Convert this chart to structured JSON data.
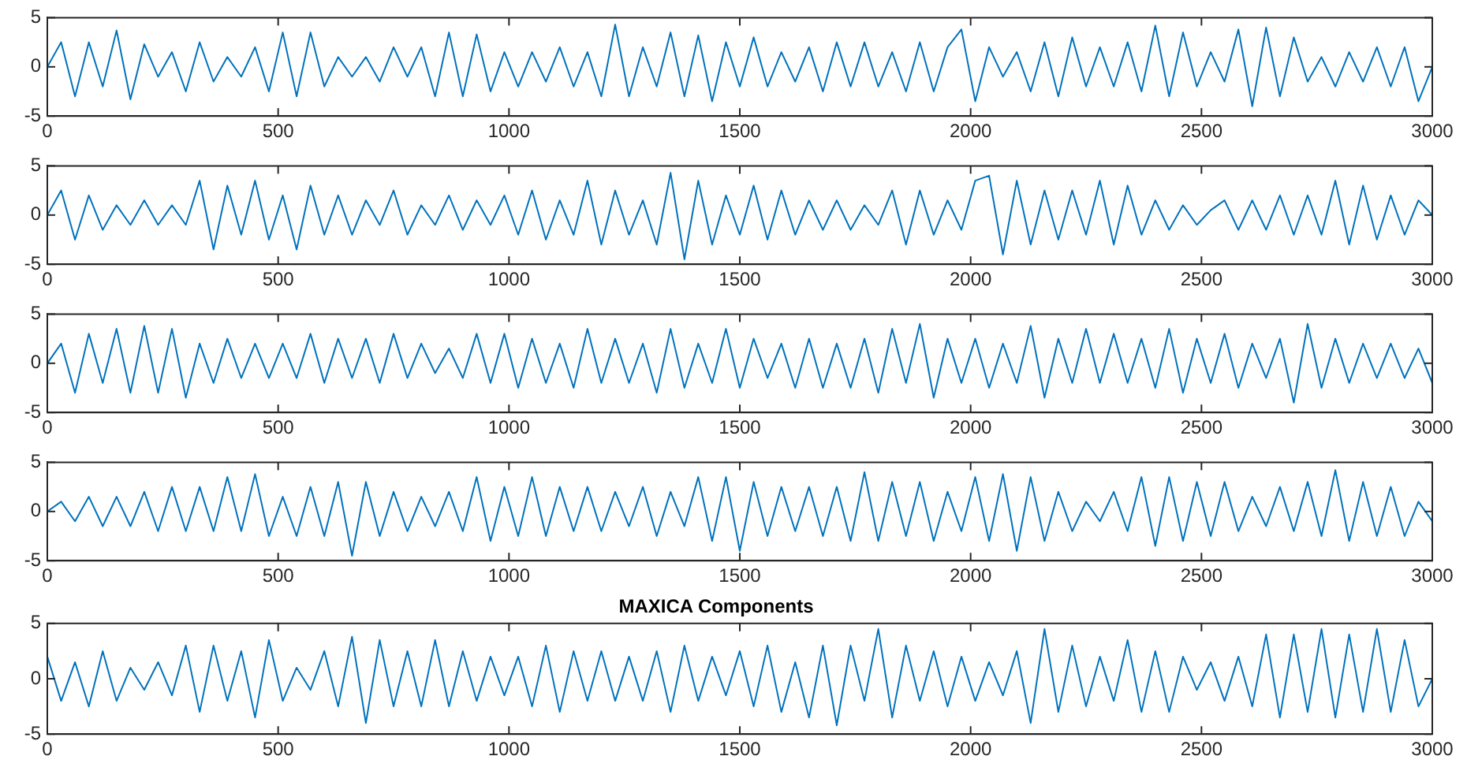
{
  "chart_data": [
    {
      "type": "line",
      "color": "#0072bd",
      "xlim": [
        0,
        3000
      ],
      "ylim": [
        -5,
        5
      ],
      "xticks": [
        0,
        500,
        1000,
        1500,
        2000,
        2500,
        3000
      ],
      "yticks": [
        -5,
        0,
        5
      ],
      "x": [
        0,
        30,
        60,
        90,
        120,
        150,
        180,
        210,
        240,
        270,
        300,
        330,
        360,
        390,
        420,
        450,
        480,
        510,
        540,
        570,
        600,
        630,
        660,
        690,
        720,
        750,
        780,
        810,
        840,
        870,
        900,
        930,
        960,
        990,
        1020,
        1050,
        1080,
        1110,
        1140,
        1170,
        1200,
        1230,
        1260,
        1290,
        1320,
        1350,
        1380,
        1410,
        1440,
        1470,
        1500,
        1530,
        1560,
        1590,
        1620,
        1650,
        1680,
        1710,
        1740,
        1770,
        1800,
        1830,
        1860,
        1890,
        1920,
        1950,
        1980,
        2010,
        2040,
        2070,
        2100,
        2130,
        2160,
        2190,
        2220,
        2250,
        2280,
        2310,
        2340,
        2370,
        2400,
        2430,
        2460,
        2490,
        2520,
        2550,
        2580,
        2610,
        2640,
        2670,
        2700,
        2730,
        2760,
        2790,
        2820,
        2850,
        2880,
        2910,
        2940,
        2970,
        3000
      ],
      "values": [
        0,
        2.5,
        -3,
        2.5,
        -2,
        3.7,
        -3.3,
        2.3,
        -1,
        1.5,
        -2.5,
        2.5,
        -1.5,
        1,
        -1,
        2,
        -2.5,
        3.5,
        -3,
        3.5,
        -2,
        1,
        -1,
        1,
        -1.5,
        2,
        -1,
        2,
        -3,
        3.5,
        -3,
        3.3,
        -2.5,
        1.5,
        -2,
        1.5,
        -1.5,
        2,
        -2,
        1.5,
        -3,
        4.3,
        -3,
        2,
        -2,
        3.5,
        -3,
        3.2,
        -3.5,
        2.5,
        -2,
        3,
        -2,
        1.5,
        -1.5,
        2,
        -2.5,
        2.5,
        -2,
        2.5,
        -2,
        1.5,
        -2.5,
        2.5,
        -2.5,
        2,
        3.8,
        -3.5,
        2,
        -1,
        1.5,
        -2.5,
        2.5,
        -3,
        3,
        -2,
        2,
        -2,
        2.5,
        -2.5,
        4.2,
        -3,
        3.5,
        -2,
        1.5,
        -1.5,
        3.8,
        -4,
        4,
        -3,
        3,
        -1.5,
        1,
        -2,
        1.5,
        -1.5,
        2,
        -2,
        2,
        -3.5,
        0
      ]
    },
    {
      "type": "line",
      "color": "#0072bd",
      "xlim": [
        0,
        3000
      ],
      "ylim": [
        -5,
        5
      ],
      "xticks": [
        0,
        500,
        1000,
        1500,
        2000,
        2500,
        3000
      ],
      "yticks": [
        -5,
        0,
        5
      ],
      "x": [
        0,
        30,
        60,
        90,
        120,
        150,
        180,
        210,
        240,
        270,
        300,
        330,
        360,
        390,
        420,
        450,
        480,
        510,
        540,
        570,
        600,
        630,
        660,
        690,
        720,
        750,
        780,
        810,
        840,
        870,
        900,
        930,
        960,
        990,
        1020,
        1050,
        1080,
        1110,
        1140,
        1170,
        1200,
        1230,
        1260,
        1290,
        1320,
        1350,
        1380,
        1410,
        1440,
        1470,
        1500,
        1530,
        1560,
        1590,
        1620,
        1650,
        1680,
        1710,
        1740,
        1770,
        1800,
        1830,
        1860,
        1890,
        1920,
        1950,
        1980,
        2010,
        2040,
        2070,
        2100,
        2130,
        2160,
        2190,
        2220,
        2250,
        2280,
        2310,
        2340,
        2370,
        2400,
        2430,
        2460,
        2490,
        2520,
        2550,
        2580,
        2610,
        2640,
        2670,
        2700,
        2730,
        2760,
        2790,
        2820,
        2850,
        2880,
        2910,
        2940,
        2970,
        3000
      ],
      "values": [
        0,
        2.5,
        -2.5,
        2,
        -1.5,
        1,
        -1,
        1.5,
        -1,
        1,
        -1,
        3.5,
        -3.5,
        3,
        -2,
        3.5,
        -2.5,
        2,
        -3.5,
        3,
        -2,
        2,
        -2,
        1.5,
        -1,
        2.5,
        -2,
        1,
        -1,
        2,
        -1.5,
        1.5,
        -1,
        2,
        -2,
        2.5,
        -2.5,
        1.5,
        -2,
        3.5,
        -3,
        2.5,
        -2,
        1.5,
        -3,
        4.3,
        -4.5,
        3.5,
        -3,
        2,
        -2,
        3,
        -2.5,
        2.5,
        -2,
        1.5,
        -1.5,
        1.5,
        -1.5,
        1,
        -1,
        2.5,
        -3,
        2.5,
        -2,
        1.5,
        -1.5,
        3.5,
        4,
        -4,
        3.5,
        -3,
        2.5,
        -2.5,
        2.5,
        -2,
        3.5,
        -3,
        3,
        -2,
        1.5,
        -1.5,
        1,
        -1,
        0.5,
        1.5,
        -1.5,
        1.5,
        -1.5,
        2,
        -2,
        2,
        -2,
        3.5,
        -3,
        3,
        -2.5,
        2,
        -2,
        1.5,
        0
      ]
    },
    {
      "type": "line",
      "color": "#0072bd",
      "xlim": [
        0,
        3000
      ],
      "ylim": [
        -5,
        5
      ],
      "xticks": [
        0,
        500,
        1000,
        1500,
        2000,
        2500,
        3000
      ],
      "yticks": [
        -5,
        0,
        5
      ],
      "x": [
        0,
        30,
        60,
        90,
        120,
        150,
        180,
        210,
        240,
        270,
        300,
        330,
        360,
        390,
        420,
        450,
        480,
        510,
        540,
        570,
        600,
        630,
        660,
        690,
        720,
        750,
        780,
        810,
        840,
        870,
        900,
        930,
        960,
        990,
        1020,
        1050,
        1080,
        1110,
        1140,
        1170,
        1200,
        1230,
        1260,
        1290,
        1320,
        1350,
        1380,
        1410,
        1440,
        1470,
        1500,
        1530,
        1560,
        1590,
        1620,
        1650,
        1680,
        1710,
        1740,
        1770,
        1800,
        1830,
        1860,
        1890,
        1920,
        1950,
        1980,
        2010,
        2040,
        2070,
        2100,
        2130,
        2160,
        2190,
        2220,
        2250,
        2280,
        2310,
        2340,
        2370,
        2400,
        2430,
        2460,
        2490,
        2520,
        2550,
        2580,
        2610,
        2640,
        2670,
        2700,
        2730,
        2760,
        2790,
        2820,
        2850,
        2880,
        2910,
        2940,
        2970,
        3000
      ],
      "values": [
        0,
        2,
        -3,
        3,
        -2,
        3.5,
        -3,
        3.8,
        -3,
        3.5,
        -3.5,
        2,
        -2,
        2.5,
        -1.5,
        2,
        -1.5,
        2,
        -1.5,
        3,
        -2,
        2.5,
        -1.5,
        2.5,
        -2,
        3,
        -1.5,
        2,
        -1,
        1.5,
        -1.5,
        3,
        -2,
        3,
        -2.5,
        2.5,
        -2,
        2,
        -2.5,
        3.5,
        -2,
        2.5,
        -2,
        2,
        -3,
        3.5,
        -2.5,
        2,
        -2,
        3.5,
        -2.5,
        2.5,
        -1.5,
        2,
        -2.5,
        2.5,
        -2.5,
        2,
        -2.5,
        2.5,
        -3,
        3.5,
        -2,
        4,
        -3.5,
        2.5,
        -2,
        2.5,
        -2.5,
        2,
        -2,
        3.8,
        -3.5,
        2.5,
        -2,
        3.5,
        -2,
        3,
        -2,
        2.5,
        -2.5,
        3.5,
        -3,
        2.5,
        -2,
        3,
        -2.5,
        2,
        -1.5,
        2.5,
        -4,
        4,
        -2.5,
        2.5,
        -2,
        2,
        -1.5,
        2,
        -1.5,
        1.5,
        -2
      ]
    },
    {
      "type": "line",
      "color": "#0072bd",
      "xlim": [
        0,
        3000
      ],
      "ylim": [
        -5,
        5
      ],
      "xticks": [
        0,
        500,
        1000,
        1500,
        2000,
        2500,
        3000
      ],
      "yticks": [
        -5,
        0,
        5
      ],
      "x": [
        0,
        30,
        60,
        90,
        120,
        150,
        180,
        210,
        240,
        270,
        300,
        330,
        360,
        390,
        420,
        450,
        480,
        510,
        540,
        570,
        600,
        630,
        660,
        690,
        720,
        750,
        780,
        810,
        840,
        870,
        900,
        930,
        960,
        990,
        1020,
        1050,
        1080,
        1110,
        1140,
        1170,
        1200,
        1230,
        1260,
        1290,
        1320,
        1350,
        1380,
        1410,
        1440,
        1470,
        1500,
        1530,
        1560,
        1590,
        1620,
        1650,
        1680,
        1710,
        1740,
        1770,
        1800,
        1830,
        1860,
        1890,
        1920,
        1950,
        1980,
        2010,
        2040,
        2070,
        2100,
        2130,
        2160,
        2190,
        2220,
        2250,
        2280,
        2310,
        2340,
        2370,
        2400,
        2430,
        2460,
        2490,
        2520,
        2550,
        2580,
        2610,
        2640,
        2670,
        2700,
        2730,
        2760,
        2790,
        2820,
        2850,
        2880,
        2910,
        2940,
        2970,
        3000
      ],
      "values": [
        0,
        1,
        -1,
        1.5,
        -1.5,
        1.5,
        -1.5,
        2,
        -2,
        2.5,
        -2,
        2.5,
        -2,
        3.5,
        -2,
        3.8,
        -2.5,
        1.5,
        -2.5,
        2.5,
        -2.5,
        3,
        -4.5,
        3,
        -2.5,
        2,
        -2,
        1.5,
        -1.5,
        2,
        -2,
        3.5,
        -3,
        2.5,
        -2.5,
        3.5,
        -2.5,
        2.5,
        -2,
        2.5,
        -2,
        2,
        -1.5,
        2.5,
        -2.5,
        2,
        -1.5,
        3.5,
        -3,
        3.5,
        -4,
        3,
        -2.5,
        2.5,
        -2,
        2.5,
        -2.5,
        2.5,
        -3,
        4,
        -3,
        3,
        -2.5,
        3,
        -3,
        2,
        -2,
        3.5,
        -3,
        3.8,
        -4,
        3.5,
        -3,
        2,
        -2,
        1,
        -1,
        2,
        -2,
        3.5,
        -3.5,
        3.5,
        -3,
        3,
        -2.5,
        3,
        -2,
        1.5,
        -1.5,
        2.5,
        -2,
        3,
        -2.5,
        4.2,
        -3,
        3,
        -2.5,
        2.5,
        -2.5,
        1,
        -1
      ]
    },
    {
      "type": "line",
      "title": "MAXICA Components",
      "color": "#0072bd",
      "xlim": [
        0,
        3000
      ],
      "ylim": [
        -5,
        5
      ],
      "xticks": [
        0,
        500,
        1000,
        1500,
        2000,
        2500,
        3000
      ],
      "yticks": [
        -5,
        0,
        5
      ],
      "x": [
        0,
        30,
        60,
        90,
        120,
        150,
        180,
        210,
        240,
        270,
        300,
        330,
        360,
        390,
        420,
        450,
        480,
        510,
        540,
        570,
        600,
        630,
        660,
        690,
        720,
        750,
        780,
        810,
        840,
        870,
        900,
        930,
        960,
        990,
        1020,
        1050,
        1080,
        1110,
        1140,
        1170,
        1200,
        1230,
        1260,
        1290,
        1320,
        1350,
        1380,
        1410,
        1440,
        1470,
        1500,
        1530,
        1560,
        1590,
        1620,
        1650,
        1680,
        1710,
        1740,
        1770,
        1800,
        1830,
        1860,
        1890,
        1920,
        1950,
        1980,
        2010,
        2040,
        2070,
        2100,
        2130,
        2160,
        2190,
        2220,
        2250,
        2280,
        2310,
        2340,
        2370,
        2400,
        2430,
        2460,
        2490,
        2520,
        2550,
        2580,
        2610,
        2640,
        2670,
        2700,
        2730,
        2760,
        2790,
        2820,
        2850,
        2880,
        2910,
        2940,
        2970,
        3000
      ],
      "values": [
        2,
        -2,
        1.5,
        -2.5,
        2.5,
        -2,
        1,
        -1,
        1.5,
        -1.5,
        3,
        -3,
        3,
        -2,
        2.5,
        -3.5,
        3.5,
        -2,
        1,
        -1,
        2.5,
        -2.5,
        3.8,
        -4,
        3.5,
        -2.5,
        2.5,
        -2.5,
        3.5,
        -2.5,
        2.5,
        -2,
        2,
        -1.5,
        2,
        -2.5,
        3,
        -3,
        2.5,
        -2,
        2.5,
        -2,
        2,
        -2,
        2.5,
        -3,
        3,
        -2,
        2,
        -1.5,
        2.5,
        -2.5,
        3,
        -3,
        1.5,
        -3.5,
        3,
        -4.2,
        3,
        -2,
        4.5,
        -3.5,
        3,
        -2,
        2.5,
        -2.5,
        2,
        -2,
        1.5,
        -1.5,
        2.5,
        -4,
        4.5,
        -3,
        3,
        -2.5,
        2,
        -2,
        3.5,
        -3,
        2.5,
        -3,
        2,
        -1,
        1.5,
        -2,
        2,
        -2.5,
        4,
        -3.5,
        4,
        -3,
        4.5,
        -3.5,
        4,
        -3,
        4.5,
        -3,
        3.5,
        -2.5,
        0
      ]
    }
  ]
}
